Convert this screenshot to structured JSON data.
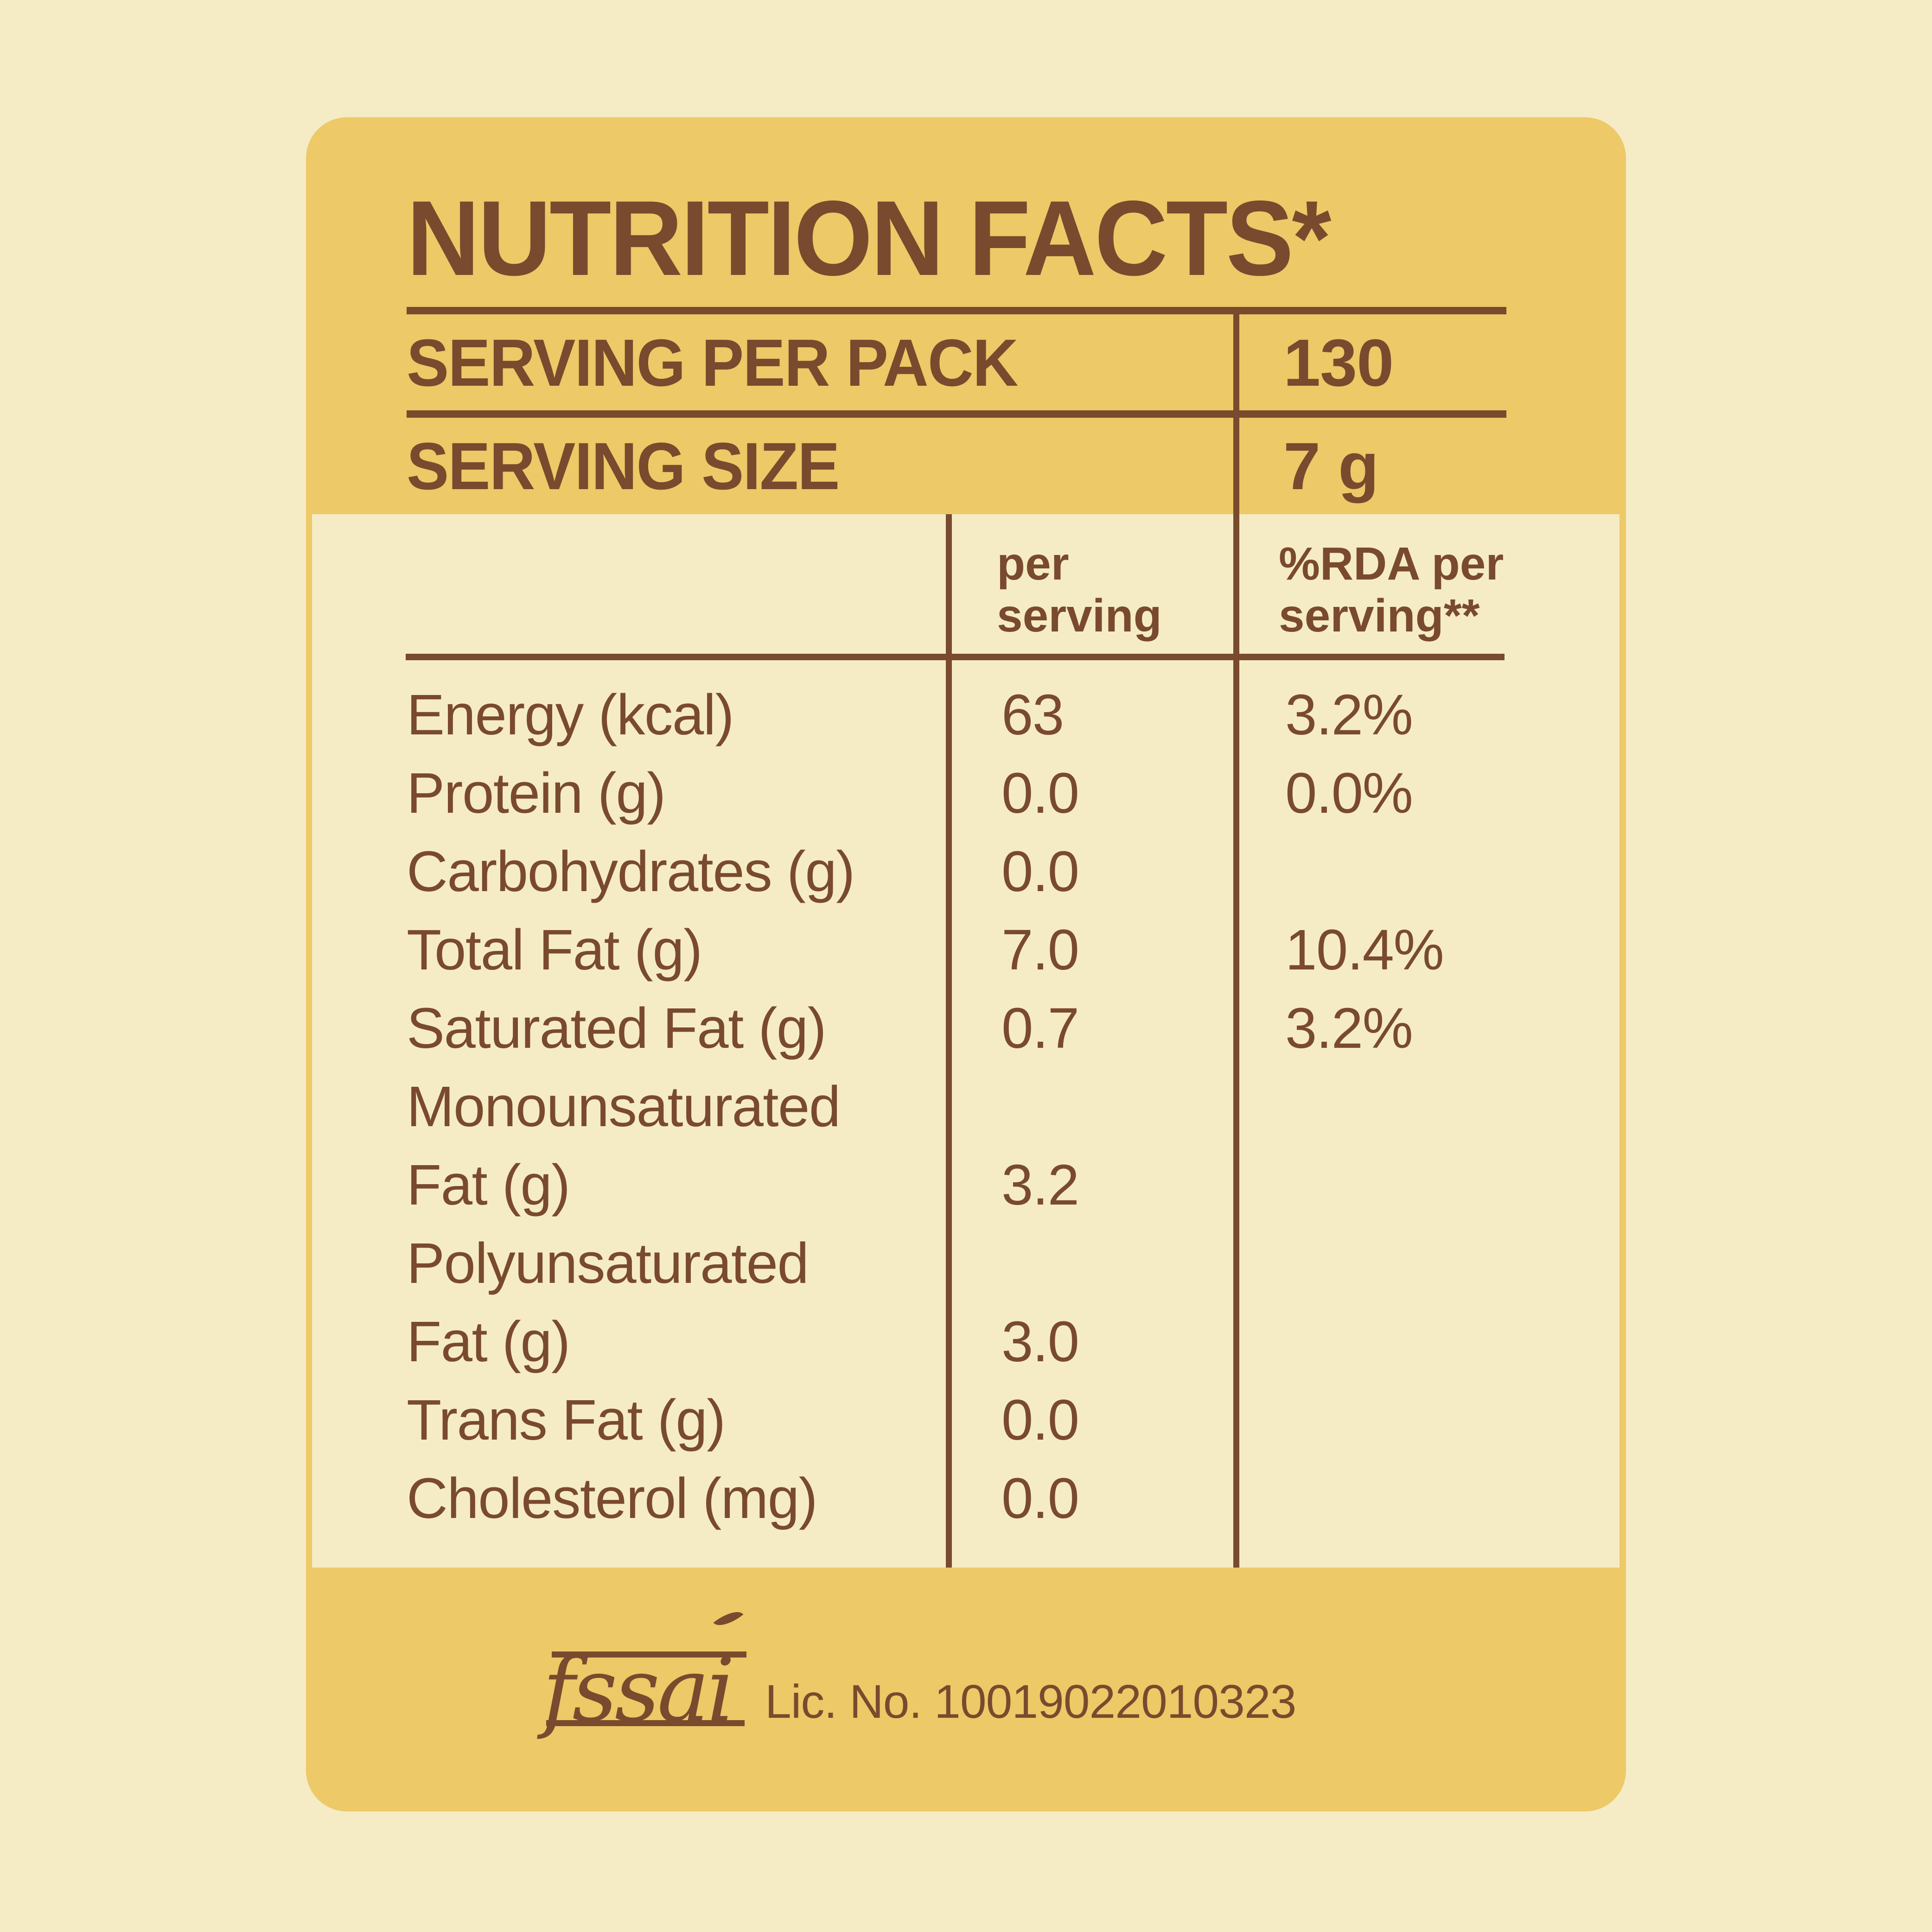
{
  "colors": {
    "background": "#f5ecc5",
    "card_gold": "#edc967",
    "text_brown": "#7a4a2e"
  },
  "header": {
    "title": "NUTRITION FACTS*",
    "rows": [
      {
        "label": "SERVING PER PACK",
        "value": "130"
      },
      {
        "label": "SERVING SIZE",
        "value": "7 g"
      }
    ]
  },
  "table": {
    "col1_header": "per\nserving",
    "col2_header": "%RDA per\nserving**",
    "rows": [
      {
        "label": "Energy (kcal)",
        "per_serving": "63",
        "rda": "3.2%"
      },
      {
        "label": "Protein (g)",
        "per_serving": "0.0",
        "rda": "0.0%"
      },
      {
        "label": "Carbohydrates (g)",
        "per_serving": "0.0",
        "rda": ""
      },
      {
        "label": "Total Fat (g)",
        "per_serving": "7.0",
        "rda": "10.4%"
      },
      {
        "label": "Saturated Fat (g)",
        "per_serving": "0.7",
        "rda": "3.2%"
      },
      {
        "label": "Monounsaturated",
        "per_serving": "",
        "rda": ""
      },
      {
        "label": "Fat (g)",
        "per_serving": "3.2",
        "rda": ""
      },
      {
        "label": "Polyunsaturated",
        "per_serving": "",
        "rda": ""
      },
      {
        "label": "Fat (g)",
        "per_serving": "3.0",
        "rda": ""
      },
      {
        "label": "Trans Fat (g)",
        "per_serving": "0.0",
        "rda": ""
      },
      {
        "label": "Cholesterol (mg)",
        "per_serving": "0.0",
        "rda": ""
      }
    ]
  },
  "footer": {
    "logo_text": "fssai",
    "license_text": "Lic. No. 10019022010323"
  }
}
